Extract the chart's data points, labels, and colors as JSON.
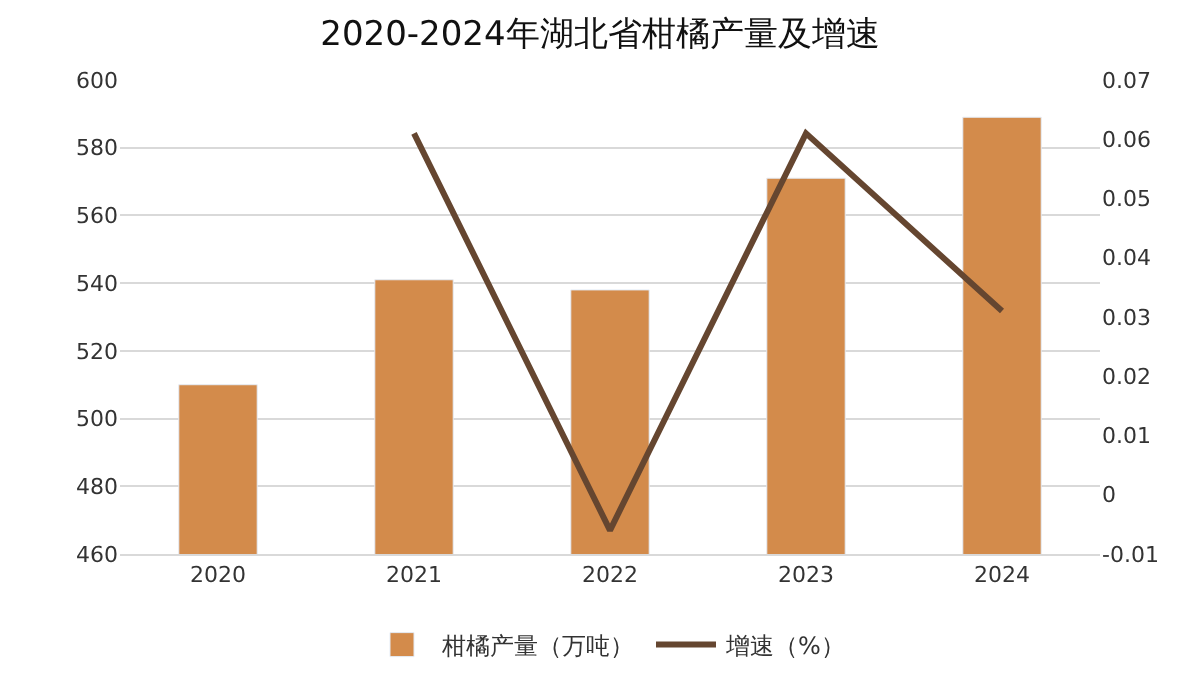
{
  "chart_data": {
    "type": "bar",
    "title": "2020-2024年湖北省柑橘产量及增速",
    "categories": [
      "2020",
      "2021",
      "2022",
      "2023",
      "2024"
    ],
    "series": [
      {
        "name": "柑橘产量（万吨）",
        "color": "#d38b4b",
        "values": [
          510,
          541,
          538,
          571,
          589
        ]
      },
      {
        "name": "增速（%）",
        "color": "#654630",
        "type": "line",
        "axis": "y2",
        "values": [
          null,
          0.061,
          -0.006,
          0.061,
          0.031
        ]
      }
    ],
    "ylim": [
      460,
      600
    ],
    "yticks": [
      460,
      480,
      500,
      520,
      540,
      560,
      580,
      600
    ],
    "y2lim": [
      -0.01,
      0.07
    ],
    "y2ticks": [
      -0.01,
      0,
      0.01,
      0.02,
      0.03,
      0.04,
      0.05,
      0.06,
      0.07
    ],
    "grid": "y",
    "legend": "bottom",
    "marker": "none",
    "line_style": "solid"
  }
}
